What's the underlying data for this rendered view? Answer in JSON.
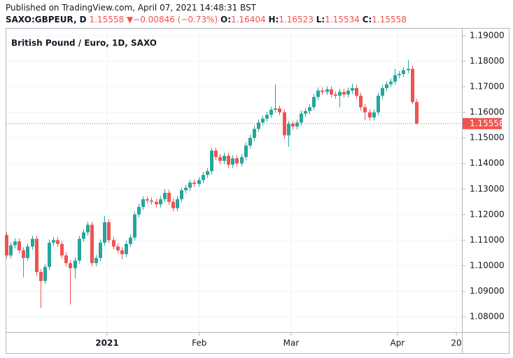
{
  "chart_data": {
    "type": "candlestick",
    "published": "Published on TradingView.com, April 07, 2021 14:48:31 BST",
    "symbol": "SAXO:GBPEUR, D",
    "arrow": "▼",
    "change": "−0.00846 (−0.73%)",
    "ohlc_labels": {
      "open": "O:",
      "high": "H:",
      "low": "L:",
      "close": "C:"
    },
    "title": "British Pound / Euro, 1D, SAXO",
    "up_color": "#26a69a",
    "down_color": "#ef5350",
    "grid": true,
    "ylim": [
      1.074,
      1.193
    ],
    "yticks": [
      {
        "value": 1.08,
        "label": "1.08000"
      },
      {
        "value": 1.09,
        "label": "1.09000"
      },
      {
        "value": 1.1,
        "label": "1.10000"
      },
      {
        "value": 1.11,
        "label": "1.11000"
      },
      {
        "value": 1.12,
        "label": "1.12000"
      },
      {
        "value": 1.13,
        "label": "1.13000"
      },
      {
        "value": 1.14,
        "label": "1.14000"
      },
      {
        "value": 1.15,
        "label": "1.15000"
      },
      {
        "value": 1.16,
        "label": "1.16000"
      },
      {
        "value": 1.17,
        "label": "1.17000"
      },
      {
        "value": 1.18,
        "label": "1.18000"
      },
      {
        "value": 1.19,
        "label": "1.19000"
      }
    ],
    "xlim": [
      -0.16,
      106.7
    ],
    "xticks": [
      {
        "value": 23.6,
        "label": "2021"
      },
      {
        "value": 45.2,
        "label": "Feb"
      },
      {
        "value": 66.7,
        "label": "Mar"
      },
      {
        "value": 91.6,
        "label": "Apr"
      },
      {
        "value": 105.4,
        "label": "20"
      }
    ],
    "open": [
      1.112,
      1.104,
      1.108,
      1.1095,
      1.106,
      1.103,
      1.1075,
      1.1105,
      1.0975,
      1.094,
      1.0995,
      1.109,
      1.11,
      1.1085,
      1.104,
      1.101,
      1.099,
      1.102,
      1.1105,
      1.113,
      1.116,
      1.101,
      1.103,
      1.109,
      1.117,
      1.11,
      1.1075,
      1.106,
      1.1045,
      1.1085,
      1.111,
      1.12,
      1.123,
      1.126,
      1.1255,
      1.125,
      1.124,
      1.126,
      1.1285,
      1.125,
      1.1225,
      1.126,
      1.1295,
      1.1305,
      1.1325,
      1.132,
      1.1335,
      1.1355,
      1.137,
      1.145,
      1.1425,
      1.141,
      1.143,
      1.1395,
      1.142,
      1.14,
      1.1425,
      1.147,
      1.15,
      1.1535,
      1.156,
      1.1575,
      1.159,
      1.161,
      1.1615,
      1.16,
      1.151,
      1.1555,
      1.1545,
      1.156,
      1.1595,
      1.1605,
      1.162,
      1.166,
      1.1685,
      1.168,
      1.169,
      1.167,
      1.1665,
      1.168,
      1.167,
      1.1685,
      1.1695,
      1.1665,
      1.162,
      1.16,
      1.158,
      1.16,
      1.1665,
      1.1695,
      1.171,
      1.172,
      1.1745,
      1.175,
      1.1765,
      1.177,
      1.16404
    ],
    "high": [
      1.1132,
      1.1092,
      1.1107,
      1.1107,
      1.1072,
      1.1087,
      1.1117,
      1.1117,
      1.0987,
      1.1007,
      1.1102,
      1.1112,
      1.1112,
      1.1097,
      1.1052,
      1.1022,
      1.1032,
      1.1117,
      1.1142,
      1.1172,
      1.1172,
      1.1042,
      1.1102,
      1.1195,
      1.1182,
      1.1112,
      1.1087,
      1.1072,
      1.1097,
      1.1122,
      1.1212,
      1.1242,
      1.1272,
      1.1272,
      1.1267,
      1.1262,
      1.1272,
      1.13,
      1.1297,
      1.1262,
      1.1272,
      1.1307,
      1.1317,
      1.1337,
      1.1337,
      1.1347,
      1.1367,
      1.1382,
      1.1462,
      1.1462,
      1.1437,
      1.1442,
      1.1442,
      1.1432,
      1.1432,
      1.1437,
      1.1482,
      1.1512,
      1.1547,
      1.1572,
      1.1587,
      1.1602,
      1.1622,
      1.171,
      1.1627,
      1.1612,
      1.1567,
      1.1567,
      1.1572,
      1.1607,
      1.1617,
      1.1632,
      1.1672,
      1.1697,
      1.1697,
      1.1702,
      1.1702,
      1.1682,
      1.1692,
      1.1692,
      1.1697,
      1.1712,
      1.1707,
      1.1677,
      1.1632,
      1.1612,
      1.1612,
      1.1677,
      1.1707,
      1.1722,
      1.1732,
      1.177,
      1.1762,
      1.1777,
      1.1805,
      1.1782,
      1.16523
    ],
    "low": [
      1.1028,
      1.1028,
      1.1068,
      1.1048,
      1.0955,
      1.1018,
      1.1063,
      1.096,
      1.0835,
      1.0928,
      1.0983,
      1.1078,
      1.1073,
      1.1028,
      1.0998,
      1.0848,
      1.095,
      1.1008,
      1.1093,
      1.1118,
      1.0998,
      1.0998,
      1.1018,
      1.1078,
      1.1088,
      1.1063,
      1.1048,
      1.1025,
      1.1033,
      1.1073,
      1.1098,
      1.1188,
      1.1218,
      1.1243,
      1.1238,
      1.1228,
      1.1228,
      1.1248,
      1.1238,
      1.1213,
      1.1213,
      1.1248,
      1.1283,
      1.1293,
      1.1308,
      1.1308,
      1.1323,
      1.1343,
      1.1358,
      1.1413,
      1.1398,
      1.1398,
      1.1383,
      1.1383,
      1.1388,
      1.1388,
      1.1413,
      1.1458,
      1.1488,
      1.1523,
      1.1548,
      1.1563,
      1.1578,
      1.1598,
      1.1588,
      1.1498,
      1.1465,
      1.1533,
      1.1533,
      1.1548,
      1.1583,
      1.1593,
      1.1608,
      1.1648,
      1.1668,
      1.1668,
      1.1658,
      1.1653,
      1.162,
      1.1658,
      1.1658,
      1.1673,
      1.1653,
      1.1608,
      1.157,
      1.1568,
      1.1568,
      1.1588,
      1.1653,
      1.1683,
      1.1698,
      1.1708,
      1.1733,
      1.1738,
      1.1753,
      1.1632,
      1.15534
    ],
    "close": [
      1.104,
      1.108,
      1.1095,
      1.106,
      1.103,
      1.1075,
      1.1105,
      1.0975,
      1.094,
      1.0995,
      1.109,
      1.11,
      1.1085,
      1.104,
      1.101,
      1.099,
      1.102,
      1.1105,
      1.113,
      1.116,
      1.101,
      1.103,
      1.109,
      1.117,
      1.11,
      1.1075,
      1.106,
      1.1045,
      1.1085,
      1.111,
      1.12,
      1.123,
      1.126,
      1.1255,
      1.125,
      1.124,
      1.126,
      1.1285,
      1.125,
      1.1225,
      1.126,
      1.1295,
      1.1305,
      1.1325,
      1.132,
      1.1335,
      1.1355,
      1.137,
      1.145,
      1.1425,
      1.141,
      1.143,
      1.1395,
      1.142,
      1.14,
      1.1425,
      1.147,
      1.15,
      1.1535,
      1.156,
      1.1575,
      1.159,
      1.161,
      1.1615,
      1.16,
      1.151,
      1.1555,
      1.1545,
      1.156,
      1.1595,
      1.1605,
      1.162,
      1.166,
      1.1685,
      1.168,
      1.169,
      1.167,
      1.1665,
      1.168,
      1.167,
      1.1685,
      1.1695,
      1.1665,
      1.162,
      1.16,
      1.158,
      1.16,
      1.1665,
      1.1695,
      1.171,
      1.172,
      1.1745,
      1.175,
      1.1765,
      1.177,
      1.16404,
      1.15558
    ]
  }
}
